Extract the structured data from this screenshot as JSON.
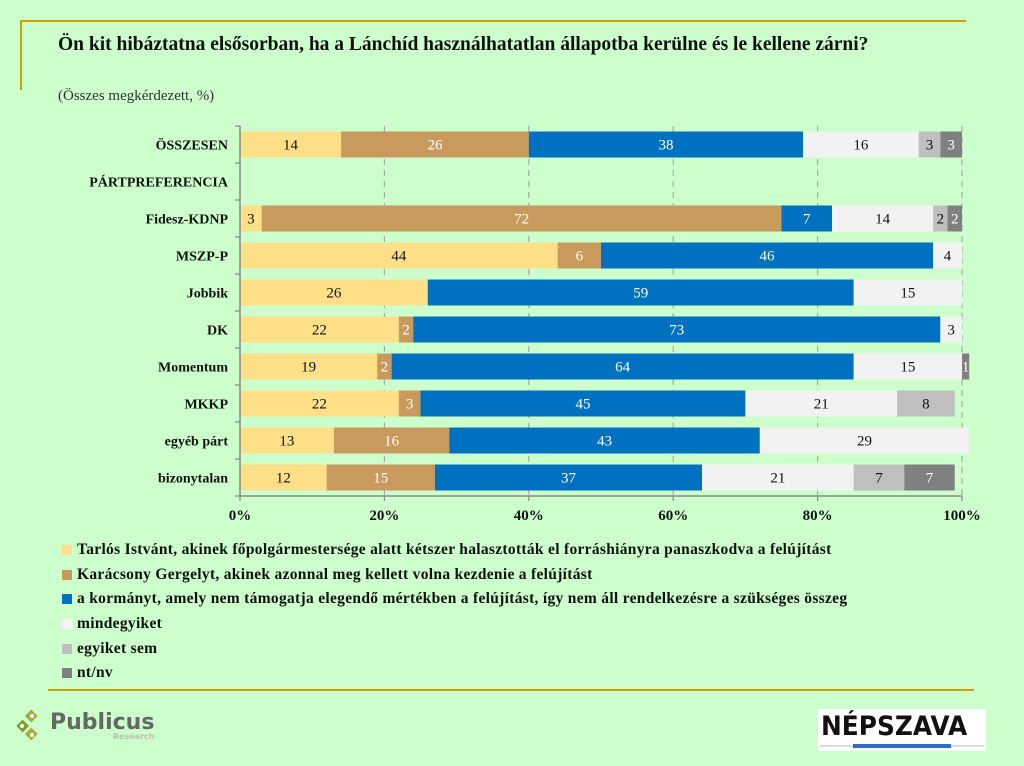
{
  "title": "Ön kit hibáztatna elsősorban, ha a Lánchíd használhatatlan állapotba kerülne és le kellene zárni?",
  "subtitle": "(Összes megkérdezett, %)",
  "logos": {
    "left": "Publicus",
    "left_sub": "Research",
    "right": "NÉPSZAVA"
  },
  "chart_data": {
    "type": "bar",
    "orientation": "horizontal",
    "stacked": "percent",
    "title": "Ön kit hibáztatna elsősorban, ha a Lánchíd használhatatlan állapotba kerülne és le kellene zárni?",
    "subtitle": "(Összes megkérdezett, %)",
    "categories": [
      "ÖSSZESEN",
      "PÁRTPREFERENCIA",
      "Fidesz-KDNP",
      "MSZP-P",
      "Jobbik",
      "DK",
      "Momentum",
      "MKKP",
      "egyéb párt",
      "bizonytalan"
    ],
    "xlim": [
      0,
      100
    ],
    "xticks": [
      "0%",
      "20%",
      "40%",
      "60%",
      "80%",
      "100%"
    ],
    "grid": "vertical dashed",
    "legend_position": "bottom-left",
    "series": [
      {
        "name": "Tarlós Istvánt, akinek főpolgármestersége alatt kétszer halasztották el forráshiányra panaszkodva a felújítást",
        "color": "#ffdf88",
        "label_color": "#111111",
        "values": [
          14,
          null,
          3,
          44,
          26,
          22,
          19,
          22,
          13,
          12
        ]
      },
      {
        "name": "Karácsony Gergelyt, akinek azonnal meg kellett volna kezdenie a felújítást",
        "color": "#c99a5e",
        "label_color": "#ffffff",
        "values": [
          26,
          null,
          72,
          6,
          0,
          2,
          2,
          3,
          16,
          15
        ]
      },
      {
        "name": "a kormányt, amely nem támogatja elegendő mértékben a felújítást, így nem áll rendelkezésre a szükséges összeg",
        "color": "#0070c0",
        "label_color": "#ffffff",
        "values": [
          38,
          null,
          7,
          46,
          59,
          73,
          64,
          45,
          43,
          37
        ]
      },
      {
        "name": "mindegyiket",
        "color": "#f2f2f2",
        "label_color": "#111111",
        "values": [
          16,
          null,
          14,
          4,
          15,
          3,
          15,
          21,
          29,
          21
        ]
      },
      {
        "name": "egyiket sem",
        "color": "#bfbfbf",
        "label_color": "#111111",
        "values": [
          3,
          null,
          2,
          0,
          0,
          0,
          0,
          8,
          0,
          7
        ]
      },
      {
        "name": "nt/nv",
        "color": "#808080",
        "label_color": "#ffffff",
        "values": [
          3,
          null,
          2,
          0,
          0,
          0,
          1,
          0,
          0,
          7
        ]
      }
    ]
  }
}
